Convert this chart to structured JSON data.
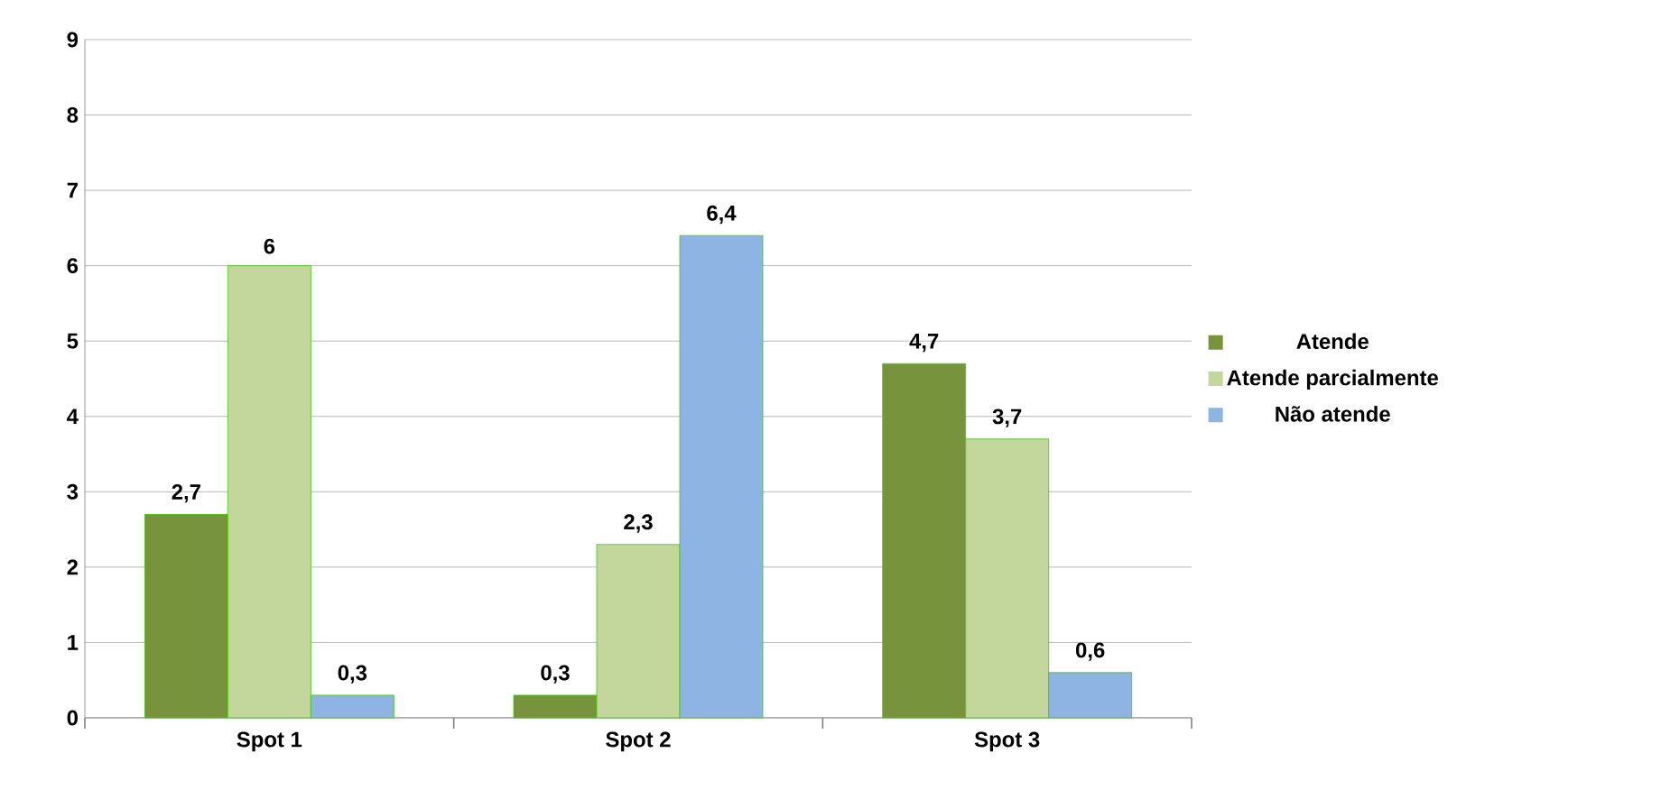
{
  "chart_data": {
    "type": "bar",
    "categories": [
      "Spot 1",
      "Spot 2",
      "Spot 3"
    ],
    "series": [
      {
        "name": "Atende",
        "color": "#77933c",
        "values": [
          2.7,
          0.3,
          4.7
        ],
        "value_labels": [
          "2,7",
          "0,3",
          "4,7"
        ]
      },
      {
        "name": "Atende parcialmente",
        "color": "#c3d69b",
        "values": [
          6,
          2.3,
          3.7
        ],
        "value_labels": [
          "6",
          "2,3",
          "3,7"
        ]
      },
      {
        "name": "Não atende",
        "color": "#8eb4e3",
        "values": [
          0.3,
          6.4,
          0.6
        ],
        "value_labels": [
          "0,3",
          "6,4",
          "0,6"
        ]
      }
    ],
    "ylim": [
      0,
      9
    ],
    "yticks": [
      0,
      1,
      2,
      3,
      4,
      5,
      6,
      7,
      8,
      9
    ],
    "grid": "y",
    "legend": "right"
  }
}
